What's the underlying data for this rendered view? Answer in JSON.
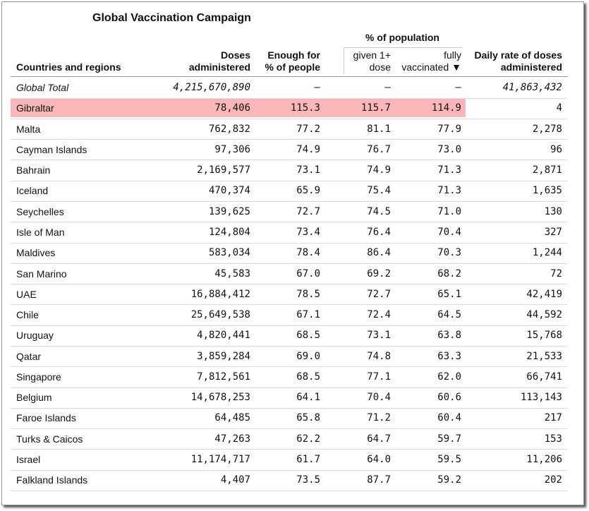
{
  "title": "Global Vaccination Campaign",
  "group_header": "% of population",
  "columns": [
    [
      "Countries and regions"
    ],
    [
      "Doses",
      "administered"
    ],
    [
      "Enough for",
      "% of people"
    ],
    [
      "given 1+",
      "dose"
    ],
    [
      "fully",
      "vaccinated ▼"
    ],
    [
      "Daily rate of doses",
      "administered"
    ]
  ],
  "rows": [
    [
      "Global Total",
      "4,215,670,890",
      "–",
      "–",
      "–",
      "41,863,432"
    ],
    [
      "Gibraltar",
      "78,406",
      "115.3",
      "115.7",
      "114.9",
      "4"
    ],
    [
      "Malta",
      "762,832",
      "77.2",
      "81.1",
      "77.9",
      "2,278"
    ],
    [
      "Cayman Islands",
      "97,306",
      "74.9",
      "76.7",
      "73.0",
      "96"
    ],
    [
      "Bahrain",
      "2,169,577",
      "73.1",
      "74.9",
      "71.3",
      "2,871"
    ],
    [
      "Iceland",
      "470,374",
      "65.9",
      "75.4",
      "71.3",
      "1,635"
    ],
    [
      "Seychelles",
      "139,625",
      "72.7",
      "74.5",
      "71.0",
      "130"
    ],
    [
      "Isle of Man",
      "124,804",
      "73.4",
      "76.4",
      "70.4",
      "327"
    ],
    [
      "Maldives",
      "583,034",
      "78.4",
      "86.4",
      "70.3",
      "1,244"
    ],
    [
      "San Marino",
      "45,583",
      "67.0",
      "69.2",
      "68.2",
      "72"
    ],
    [
      "UAE",
      "16,884,412",
      "78.5",
      "72.7",
      "65.1",
      "42,419"
    ],
    [
      "Chile",
      "25,649,538",
      "67.1",
      "72.4",
      "64.5",
      "44,592"
    ],
    [
      "Uruguay",
      "4,820,441",
      "68.5",
      "73.1",
      "63.8",
      "15,768"
    ],
    [
      "Qatar",
      "3,859,284",
      "69.0",
      "74.8",
      "63.3",
      "21,533"
    ],
    [
      "Singapore",
      "7,812,561",
      "68.5",
      "77.1",
      "62.0",
      "66,741"
    ],
    [
      "Belgium",
      "14,678,253",
      "64.1",
      "70.4",
      "60.6",
      "113,143"
    ],
    [
      "Faroe Islands",
      "64,485",
      "65.8",
      "71.2",
      "60.4",
      "217"
    ],
    [
      "Turks & Caicos",
      "47,263",
      "62.2",
      "64.7",
      "59.7",
      "153"
    ],
    [
      "Israel",
      "11,174,717",
      "61.7",
      "64.0",
      "59.5",
      "11,206"
    ],
    [
      "Falkland Islands",
      "4,407",
      "73.5",
      "87.7",
      "59.2",
      "202"
    ]
  ]
}
